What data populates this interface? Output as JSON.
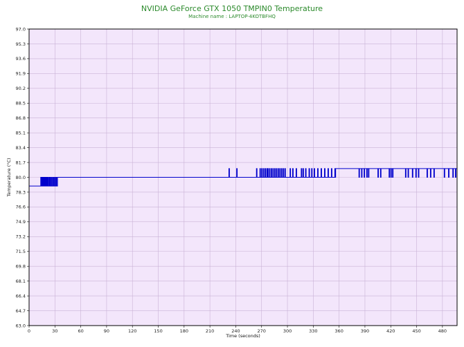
{
  "chart_data": {
    "type": "line",
    "title": "NVIDIA GeForce GTX 1050 TMPIN0 Temperature",
    "subtitle": "Machine name : LAPTOP-4KOTBFHQ",
    "xlabel": "Time (seconds)",
    "ylabel": "Temperature (°C)",
    "xlim": [
      0,
      497
    ],
    "ylim": [
      63.0,
      97.0
    ],
    "x_ticks": [
      "0",
      "30",
      "60",
      "90",
      "120",
      "150",
      "180",
      "210",
      "240",
      "270",
      "300",
      "330",
      "360",
      "390",
      "420",
      "450",
      "480"
    ],
    "y_ticks": [
      "63.0",
      "64.7",
      "66.4",
      "68.1",
      "69.8",
      "71.5",
      "73.2",
      "74.9",
      "76.6",
      "78.3",
      "80.0",
      "81.7",
      "83.4",
      "85.1",
      "86.8",
      "88.5",
      "90.2",
      "91.9",
      "93.6",
      "95.3",
      "97.0"
    ],
    "grid": true,
    "colors": {
      "plot_bg": "#f3e6fb",
      "grid": "#c9b2d6",
      "line": "#0000cc",
      "title": "#2b8a2b"
    },
    "series": [
      {
        "levels": [
          79.0,
          80.0,
          81.0
        ],
        "segments": [
          {
            "x": [
              0,
              13
            ],
            "base": 79.0,
            "spikes_to": null
          },
          {
            "x": [
              13,
              33
            ],
            "base": 79.0,
            "spikes_to": 80.0,
            "spike_times": [
              13.5,
              14.5,
              15.5,
              16.5,
              17.5,
              18.5,
              19.5,
              20.5,
              21.5,
              23,
              24,
              25.5,
              27,
              28.5,
              30,
              31.5
            ]
          },
          {
            "x": [
              33,
              488
            ],
            "base": 80.0,
            "spikes_to": 81.0,
            "spike_times": [
              232,
              241,
              264,
              268,
              270,
              272,
              274,
              276,
              277,
              279,
              281,
              283,
              285,
              287,
              289,
              291,
              293,
              295,
              297,
              303,
              306,
              310,
              316,
              318,
              321,
              325,
              328,
              331,
              335,
              339,
              343,
              347,
              351,
              355,
              358
            ]
          },
          {
            "x": [
              356,
              497
            ],
            "base": 81.0,
            "dips_to": 80.0,
            "dip_times": [
              383,
              386,
              389,
              392,
              394,
              405,
              408,
              418,
              420,
              422,
              437,
              440,
              445,
              449,
              452,
              462,
              466,
              470,
              482,
              487,
              492,
              495
            ]
          }
        ]
      }
    ]
  }
}
